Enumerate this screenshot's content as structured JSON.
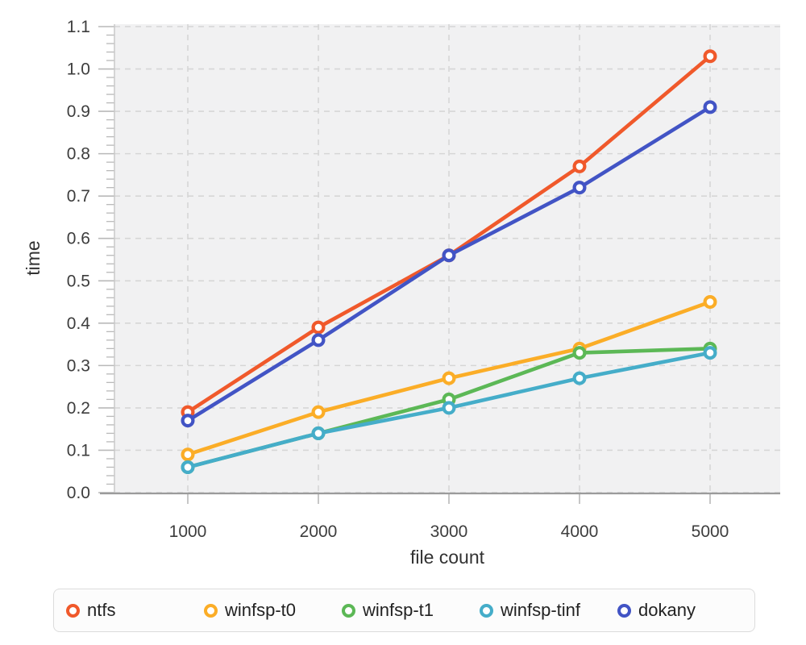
{
  "chart_data": {
    "type": "line",
    "title": "",
    "xlabel": "file count",
    "ylabel": "time",
    "x": [
      1000,
      2000,
      3000,
      4000,
      5000
    ],
    "x_tick_labels": [
      "1000",
      "2000",
      "3000",
      "4000",
      "5000"
    ],
    "series": [
      {
        "name": "ntfs",
        "color": "#f0592b",
        "values": [
          0.19,
          0.39,
          0.56,
          0.77,
          1.03
        ]
      },
      {
        "name": "winfsp-t0",
        "color": "#fbad27",
        "values": [
          0.09,
          0.19,
          0.27,
          0.34,
          0.45
        ]
      },
      {
        "name": "winfsp-t1",
        "color": "#5cb856",
        "values": [
          0.06,
          0.14,
          0.22,
          0.33,
          0.34
        ]
      },
      {
        "name": "winfsp-tinf",
        "color": "#45adc9",
        "values": [
          0.06,
          0.14,
          0.2,
          0.27,
          0.33
        ]
      },
      {
        "name": "dokany",
        "color": "#4254c5",
        "values": [
          0.17,
          0.36,
          0.56,
          0.72,
          0.91
        ]
      }
    ],
    "ylim": [
      0.0,
      1.1
    ],
    "y_major_step": 0.1,
    "y_minor_step": 0.02,
    "y_tick_labels": [
      "0.0",
      "0.1",
      "0.2",
      "0.3",
      "0.4",
      "0.5",
      "0.6",
      "0.7",
      "0.8",
      "0.9",
      "1.0",
      "1.1"
    ],
    "grid": true,
    "grid_style": "dashed",
    "legend_position": "bottom",
    "marker": "open-circle"
  },
  "theme": {
    "page_background": "#ffffff",
    "plot_background": "#f1f1f2",
    "grid_color": "#d6d6d6",
    "tick_color": "#b9b9b9",
    "axis_line_color": "#9b9b9b",
    "left_spine_color": "#c9c9c9",
    "tick_label_color": "#3d3d3d",
    "axis_title_color": "#323232",
    "legend_border": "#dcdcdc",
    "legend_background": "#fcfcfc",
    "legend_text": "#222222"
  }
}
